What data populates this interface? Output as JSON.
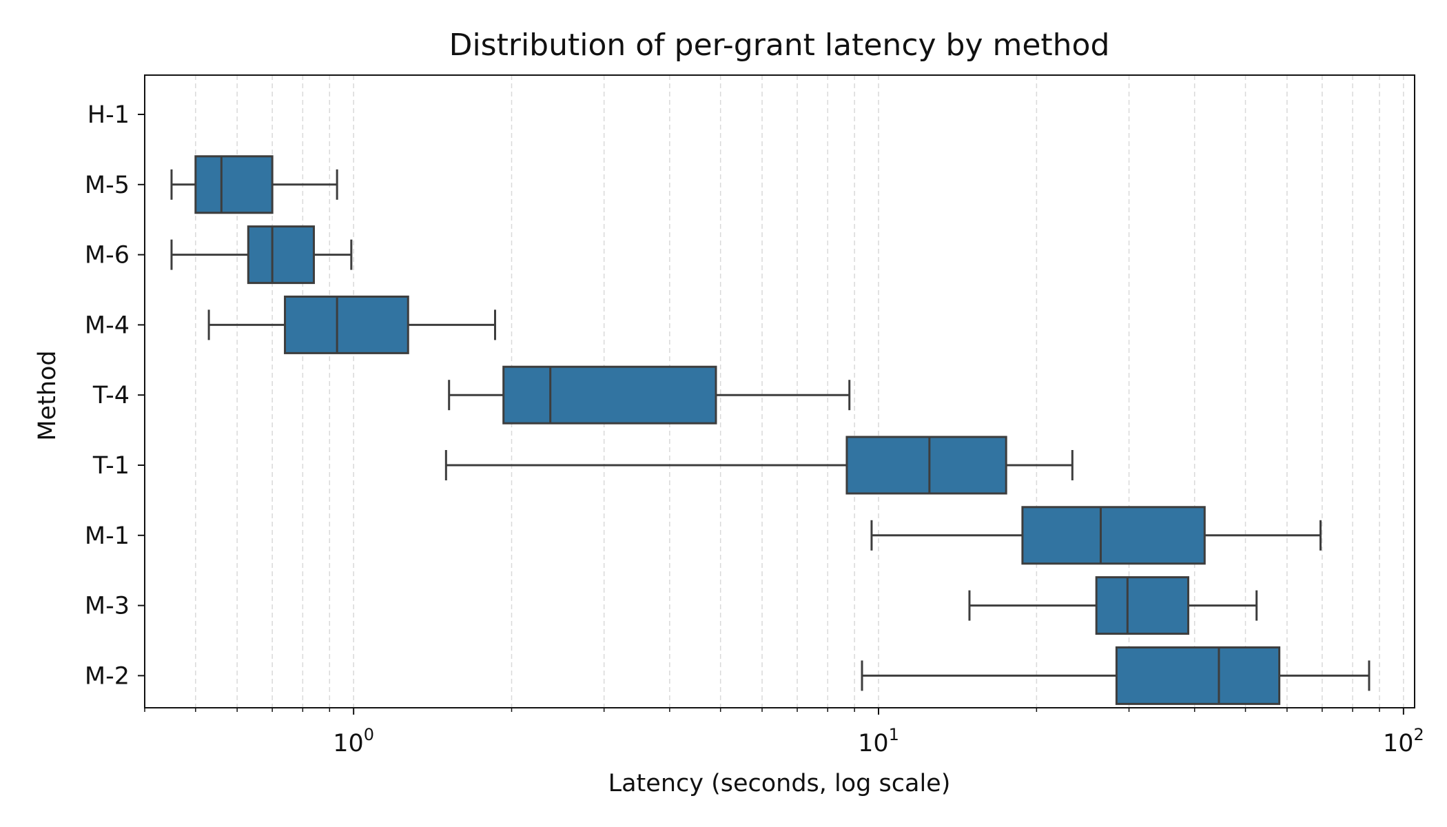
{
  "chart_data": {
    "type": "box",
    "title": "Distribution of per-grant latency by method",
    "xlabel": "Latency (seconds, log scale)",
    "ylabel": "Method",
    "xscale": "log",
    "xlim": [
      0.4,
      105
    ],
    "x_ticks": [
      {
        "base": "10",
        "exp": "0",
        "value": 1
      },
      {
        "base": "10",
        "exp": "1",
        "value": 10
      },
      {
        "base": "10",
        "exp": "2",
        "value": 100
      }
    ],
    "grid": "vertical dashed gridlines at major and minor x ticks",
    "box_color": "#3274a1",
    "line_color": "#3d3d3d",
    "categories": [
      "H-1",
      "M-5",
      "M-6",
      "M-4",
      "T-4",
      "T-1",
      "M-1",
      "M-3",
      "M-2"
    ],
    "boxes": [
      {
        "method": "H-1",
        "whislo": null,
        "q1": null,
        "med": null,
        "q3": null,
        "whishi": null
      },
      {
        "method": "M-5",
        "whislo": 0.45,
        "q1": 0.5,
        "med": 0.56,
        "q3": 0.7,
        "whishi": 0.93
      },
      {
        "method": "M-6",
        "whislo": 0.45,
        "q1": 0.63,
        "med": 0.7,
        "q3": 0.84,
        "whishi": 0.99
      },
      {
        "method": "M-4",
        "whislo": 0.53,
        "q1": 0.74,
        "med": 0.93,
        "q3": 1.27,
        "whishi": 1.86
      },
      {
        "method": "T-4",
        "whislo": 1.52,
        "q1": 1.93,
        "med": 2.37,
        "q3": 4.9,
        "whishi": 8.8
      },
      {
        "method": "T-1",
        "whislo": 1.5,
        "q1": 8.7,
        "med": 12.5,
        "q3": 17.5,
        "whishi": 23.4
      },
      {
        "method": "M-1",
        "whislo": 9.7,
        "q1": 18.8,
        "med": 26.5,
        "q3": 41.8,
        "whishi": 69.5
      },
      {
        "method": "M-3",
        "whislo": 14.9,
        "q1": 26.0,
        "med": 29.8,
        "q3": 38.9,
        "whishi": 52.5
      },
      {
        "method": "M-2",
        "whislo": 9.3,
        "q1": 28.4,
        "med": 44.5,
        "q3": 58.0,
        "whishi": 86.0
      }
    ]
  }
}
